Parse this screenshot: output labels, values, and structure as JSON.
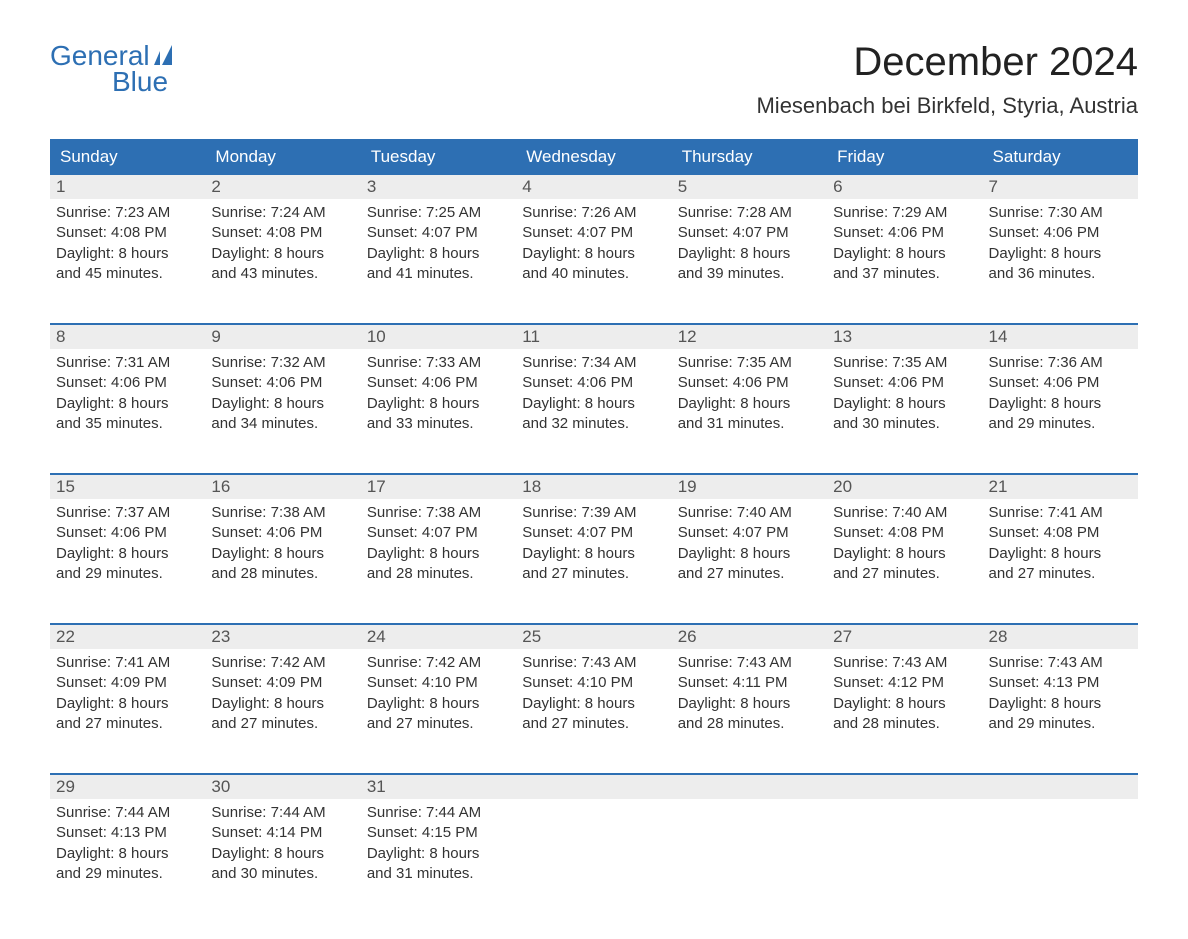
{
  "logo": {
    "word1": "General",
    "word2": "Blue"
  },
  "title": "December 2024",
  "location": "Miesenbach bei Birkfeld, Styria, Austria",
  "colors": {
    "brand": "#2d6fb3",
    "header_bg": "#2d6fb3",
    "header_text": "#ffffff",
    "daynum_bg": "#ededed",
    "daynum_text": "#555555",
    "body_text": "#333333",
    "page_bg": "#ffffff",
    "week_border": "#2d6fb3"
  },
  "typography": {
    "title_fontsize": 40,
    "location_fontsize": 22,
    "dayheader_fontsize": 17,
    "daynum_fontsize": 17,
    "cell_fontsize": 15,
    "logo_fontsize": 28
  },
  "day_headers": [
    "Sunday",
    "Monday",
    "Tuesday",
    "Wednesday",
    "Thursday",
    "Friday",
    "Saturday"
  ],
  "weeks": [
    [
      {
        "n": "1",
        "sr": "Sunrise: 7:23 AM",
        "ss": "Sunset: 4:08 PM",
        "d1": "Daylight: 8 hours",
        "d2": "and 45 minutes."
      },
      {
        "n": "2",
        "sr": "Sunrise: 7:24 AM",
        "ss": "Sunset: 4:08 PM",
        "d1": "Daylight: 8 hours",
        "d2": "and 43 minutes."
      },
      {
        "n": "3",
        "sr": "Sunrise: 7:25 AM",
        "ss": "Sunset: 4:07 PM",
        "d1": "Daylight: 8 hours",
        "d2": "and 41 minutes."
      },
      {
        "n": "4",
        "sr": "Sunrise: 7:26 AM",
        "ss": "Sunset: 4:07 PM",
        "d1": "Daylight: 8 hours",
        "d2": "and 40 minutes."
      },
      {
        "n": "5",
        "sr": "Sunrise: 7:28 AM",
        "ss": "Sunset: 4:07 PM",
        "d1": "Daylight: 8 hours",
        "d2": "and 39 minutes."
      },
      {
        "n": "6",
        "sr": "Sunrise: 7:29 AM",
        "ss": "Sunset: 4:06 PM",
        "d1": "Daylight: 8 hours",
        "d2": "and 37 minutes."
      },
      {
        "n": "7",
        "sr": "Sunrise: 7:30 AM",
        "ss": "Sunset: 4:06 PM",
        "d1": "Daylight: 8 hours",
        "d2": "and 36 minutes."
      }
    ],
    [
      {
        "n": "8",
        "sr": "Sunrise: 7:31 AM",
        "ss": "Sunset: 4:06 PM",
        "d1": "Daylight: 8 hours",
        "d2": "and 35 minutes."
      },
      {
        "n": "9",
        "sr": "Sunrise: 7:32 AM",
        "ss": "Sunset: 4:06 PM",
        "d1": "Daylight: 8 hours",
        "d2": "and 34 minutes."
      },
      {
        "n": "10",
        "sr": "Sunrise: 7:33 AM",
        "ss": "Sunset: 4:06 PM",
        "d1": "Daylight: 8 hours",
        "d2": "and 33 minutes."
      },
      {
        "n": "11",
        "sr": "Sunrise: 7:34 AM",
        "ss": "Sunset: 4:06 PM",
        "d1": "Daylight: 8 hours",
        "d2": "and 32 minutes."
      },
      {
        "n": "12",
        "sr": "Sunrise: 7:35 AM",
        "ss": "Sunset: 4:06 PM",
        "d1": "Daylight: 8 hours",
        "d2": "and 31 minutes."
      },
      {
        "n": "13",
        "sr": "Sunrise: 7:35 AM",
        "ss": "Sunset: 4:06 PM",
        "d1": "Daylight: 8 hours",
        "d2": "and 30 minutes."
      },
      {
        "n": "14",
        "sr": "Sunrise: 7:36 AM",
        "ss": "Sunset: 4:06 PM",
        "d1": "Daylight: 8 hours",
        "d2": "and 29 minutes."
      }
    ],
    [
      {
        "n": "15",
        "sr": "Sunrise: 7:37 AM",
        "ss": "Sunset: 4:06 PM",
        "d1": "Daylight: 8 hours",
        "d2": "and 29 minutes."
      },
      {
        "n": "16",
        "sr": "Sunrise: 7:38 AM",
        "ss": "Sunset: 4:06 PM",
        "d1": "Daylight: 8 hours",
        "d2": "and 28 minutes."
      },
      {
        "n": "17",
        "sr": "Sunrise: 7:38 AM",
        "ss": "Sunset: 4:07 PM",
        "d1": "Daylight: 8 hours",
        "d2": "and 28 minutes."
      },
      {
        "n": "18",
        "sr": "Sunrise: 7:39 AM",
        "ss": "Sunset: 4:07 PM",
        "d1": "Daylight: 8 hours",
        "d2": "and 27 minutes."
      },
      {
        "n": "19",
        "sr": "Sunrise: 7:40 AM",
        "ss": "Sunset: 4:07 PM",
        "d1": "Daylight: 8 hours",
        "d2": "and 27 minutes."
      },
      {
        "n": "20",
        "sr": "Sunrise: 7:40 AM",
        "ss": "Sunset: 4:08 PM",
        "d1": "Daylight: 8 hours",
        "d2": "and 27 minutes."
      },
      {
        "n": "21",
        "sr": "Sunrise: 7:41 AM",
        "ss": "Sunset: 4:08 PM",
        "d1": "Daylight: 8 hours",
        "d2": "and 27 minutes."
      }
    ],
    [
      {
        "n": "22",
        "sr": "Sunrise: 7:41 AM",
        "ss": "Sunset: 4:09 PM",
        "d1": "Daylight: 8 hours",
        "d2": "and 27 minutes."
      },
      {
        "n": "23",
        "sr": "Sunrise: 7:42 AM",
        "ss": "Sunset: 4:09 PM",
        "d1": "Daylight: 8 hours",
        "d2": "and 27 minutes."
      },
      {
        "n": "24",
        "sr": "Sunrise: 7:42 AM",
        "ss": "Sunset: 4:10 PM",
        "d1": "Daylight: 8 hours",
        "d2": "and 27 minutes."
      },
      {
        "n": "25",
        "sr": "Sunrise: 7:43 AM",
        "ss": "Sunset: 4:10 PM",
        "d1": "Daylight: 8 hours",
        "d2": "and 27 minutes."
      },
      {
        "n": "26",
        "sr": "Sunrise: 7:43 AM",
        "ss": "Sunset: 4:11 PM",
        "d1": "Daylight: 8 hours",
        "d2": "and 28 minutes."
      },
      {
        "n": "27",
        "sr": "Sunrise: 7:43 AM",
        "ss": "Sunset: 4:12 PM",
        "d1": "Daylight: 8 hours",
        "d2": "and 28 minutes."
      },
      {
        "n": "28",
        "sr": "Sunrise: 7:43 AM",
        "ss": "Sunset: 4:13 PM",
        "d1": "Daylight: 8 hours",
        "d2": "and 29 minutes."
      }
    ],
    [
      {
        "n": "29",
        "sr": "Sunrise: 7:44 AM",
        "ss": "Sunset: 4:13 PM",
        "d1": "Daylight: 8 hours",
        "d2": "and 29 minutes."
      },
      {
        "n": "30",
        "sr": "Sunrise: 7:44 AM",
        "ss": "Sunset: 4:14 PM",
        "d1": "Daylight: 8 hours",
        "d2": "and 30 minutes."
      },
      {
        "n": "31",
        "sr": "Sunrise: 7:44 AM",
        "ss": "Sunset: 4:15 PM",
        "d1": "Daylight: 8 hours",
        "d2": "and 31 minutes."
      },
      {
        "n": "",
        "sr": "",
        "ss": "",
        "d1": "",
        "d2": ""
      },
      {
        "n": "",
        "sr": "",
        "ss": "",
        "d1": "",
        "d2": ""
      },
      {
        "n": "",
        "sr": "",
        "ss": "",
        "d1": "",
        "d2": ""
      },
      {
        "n": "",
        "sr": "",
        "ss": "",
        "d1": "",
        "d2": ""
      }
    ]
  ]
}
